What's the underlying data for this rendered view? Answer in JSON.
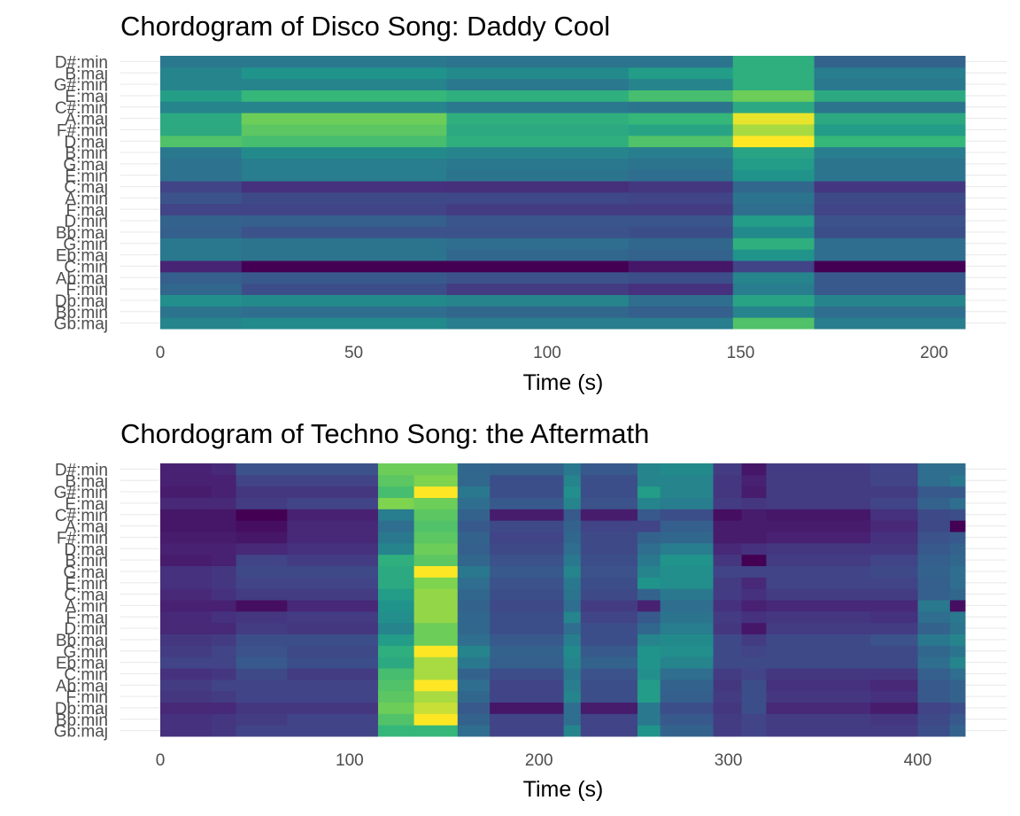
{
  "colors": {
    "background": "#ffffff",
    "grid": "#ebebeb",
    "tick_text": "#4d4d4d",
    "title_text": "#000000",
    "palette": "viridis"
  },
  "chart_data": [
    {
      "type": "heatmap",
      "title": "Chordogram of Disco Song: Daddy Cool",
      "xlabel": "Time (s)",
      "ylabel": "",
      "xlim": [
        0,
        208
      ],
      "xticks": [
        0,
        50,
        100,
        150,
        200
      ],
      "grid": true,
      "legend": "none",
      "y_categories": [
        "Gb:maj",
        "Bb:min",
        "Db:maj",
        "F:min",
        "Ab:maj",
        "C:min",
        "Eb:maj",
        "G:min",
        "Bb:maj",
        "D:min",
        "F:maj",
        "A:min",
        "C:maj",
        "E:min",
        "G:maj",
        "B:min",
        "D:maj",
        "F#:min",
        "A:maj",
        "C#:min",
        "E:maj",
        "G#:min",
        "B:maj",
        "D#:min"
      ],
      "segments": [
        {
          "start": 0,
          "end": 21,
          "values": [
            0.55,
            0.48,
            0.6,
            0.42,
            0.38,
            0.13,
            0.5,
            0.5,
            0.38,
            0.4,
            0.25,
            0.32,
            0.25,
            0.47,
            0.47,
            0.5,
            0.8,
            0.7,
            0.7,
            0.55,
            0.66,
            0.55,
            0.55,
            0.5
          ]
        },
        {
          "start": 21,
          "end": 74,
          "values": [
            0.58,
            0.45,
            0.58,
            0.3,
            0.35,
            0.0,
            0.48,
            0.48,
            0.32,
            0.38,
            0.25,
            0.28,
            0.18,
            0.52,
            0.52,
            0.58,
            0.78,
            0.82,
            0.85,
            0.55,
            0.75,
            0.55,
            0.62,
            0.5
          ]
        },
        {
          "start": 74,
          "end": 121,
          "values": [
            0.52,
            0.42,
            0.55,
            0.22,
            0.32,
            0.0,
            0.42,
            0.45,
            0.32,
            0.33,
            0.22,
            0.27,
            0.17,
            0.48,
            0.5,
            0.55,
            0.72,
            0.7,
            0.72,
            0.5,
            0.72,
            0.5,
            0.58,
            0.48
          ]
        },
        {
          "start": 121,
          "end": 148,
          "values": [
            0.52,
            0.38,
            0.45,
            0.18,
            0.3,
            0.08,
            0.4,
            0.42,
            0.3,
            0.33,
            0.22,
            0.25,
            0.2,
            0.45,
            0.48,
            0.52,
            0.8,
            0.68,
            0.75,
            0.48,
            0.78,
            0.55,
            0.65,
            0.48
          ]
        },
        {
          "start": 148,
          "end": 169,
          "values": [
            0.8,
            0.55,
            0.68,
            0.52,
            0.55,
            0.25,
            0.62,
            0.72,
            0.58,
            0.65,
            0.45,
            0.48,
            0.42,
            0.62,
            0.65,
            0.68,
            1.0,
            0.92,
            0.98,
            0.7,
            0.85,
            0.72,
            0.72,
            0.72
          ]
        },
        {
          "start": 169,
          "end": 208,
          "values": [
            0.52,
            0.45,
            0.55,
            0.35,
            0.35,
            0.0,
            0.45,
            0.45,
            0.3,
            0.32,
            0.25,
            0.28,
            0.2,
            0.48,
            0.48,
            0.52,
            0.75,
            0.65,
            0.7,
            0.48,
            0.7,
            0.5,
            0.52,
            0.4
          ]
        }
      ]
    },
    {
      "type": "heatmap",
      "title": "Chordogram of Techno Song: the Aftermath",
      "xlabel": "Time (s)",
      "ylabel": "",
      "xlim": [
        0,
        425
      ],
      "xticks": [
        0,
        100,
        200,
        300,
        400
      ],
      "grid": true,
      "legend": "none",
      "y_categories": [
        "Gb:maj",
        "Bb:min",
        "Db:maj",
        "F:min",
        "Ab:maj",
        "C:min",
        "Eb:maj",
        "G:min",
        "Bb:maj",
        "D:min",
        "F:maj",
        "A:min",
        "C:maj",
        "E:min",
        "G:maj",
        "B:min",
        "D:maj",
        "F#:min",
        "A:maj",
        "C#:min",
        "E:maj",
        "G#:min",
        "B:maj",
        "D#:min"
      ],
      "segments": [
        {
          "start": 0,
          "end": 27,
          "values": [
            0.18,
            0.18,
            0.15,
            0.2,
            0.22,
            0.18,
            0.25,
            0.22,
            0.2,
            0.15,
            0.15,
            0.12,
            0.15,
            0.18,
            0.18,
            0.1,
            0.12,
            0.1,
            0.08,
            0.08,
            0.15,
            0.1,
            0.12,
            0.12
          ]
        },
        {
          "start": 27,
          "end": 40,
          "values": [
            0.2,
            0.2,
            0.15,
            0.22,
            0.25,
            0.2,
            0.25,
            0.25,
            0.22,
            0.15,
            0.18,
            0.12,
            0.18,
            0.2,
            0.2,
            0.12,
            0.12,
            0.1,
            0.08,
            0.08,
            0.15,
            0.12,
            0.12,
            0.15
          ]
        },
        {
          "start": 40,
          "end": 67,
          "values": [
            0.25,
            0.22,
            0.2,
            0.25,
            0.25,
            0.28,
            0.35,
            0.32,
            0.3,
            0.22,
            0.2,
            0.05,
            0.22,
            0.25,
            0.28,
            0.25,
            0.15,
            0.08,
            0.05,
            0.0,
            0.22,
            0.2,
            0.25,
            0.32
          ]
        },
        {
          "start": 67,
          "end": 115,
          "values": [
            0.25,
            0.25,
            0.2,
            0.25,
            0.25,
            0.22,
            0.3,
            0.28,
            0.3,
            0.2,
            0.22,
            0.15,
            0.22,
            0.25,
            0.28,
            0.22,
            0.18,
            0.15,
            0.15,
            0.12,
            0.25,
            0.2,
            0.25,
            0.32
          ]
        },
        {
          "start": 115,
          "end": 134,
          "values": [
            0.75,
            0.8,
            0.85,
            0.82,
            0.8,
            0.78,
            0.7,
            0.72,
            0.65,
            0.55,
            0.6,
            0.62,
            0.65,
            0.7,
            0.7,
            0.72,
            0.55,
            0.5,
            0.45,
            0.52,
            0.88,
            0.78,
            0.82,
            0.85
          ]
        },
        {
          "start": 134,
          "end": 157,
          "values": [
            0.75,
            1.0,
            0.95,
            0.92,
            1.0,
            0.92,
            0.92,
            1.0,
            0.85,
            0.85,
            0.9,
            0.9,
            0.9,
            0.88,
            1.0,
            0.82,
            0.85,
            0.82,
            0.8,
            0.82,
            0.85,
            1.0,
            0.88,
            0.85
          ]
        },
        {
          "start": 157,
          "end": 174,
          "values": [
            0.45,
            0.4,
            0.35,
            0.42,
            0.45,
            0.4,
            0.5,
            0.55,
            0.45,
            0.42,
            0.42,
            0.4,
            0.42,
            0.45,
            0.5,
            0.42,
            0.38,
            0.4,
            0.35,
            0.4,
            0.45,
            0.5,
            0.42,
            0.42
          ]
        },
        {
          "start": 174,
          "end": 213,
          "values": [
            0.25,
            0.25,
            0.08,
            0.25,
            0.25,
            0.3,
            0.38,
            0.4,
            0.35,
            0.3,
            0.3,
            0.28,
            0.3,
            0.32,
            0.35,
            0.32,
            0.28,
            0.25,
            0.28,
            0.1,
            0.35,
            0.3,
            0.3,
            0.4
          ]
        },
        {
          "start": 213,
          "end": 222,
          "values": [
            0.55,
            0.45,
            0.45,
            0.55,
            0.52,
            0.5,
            0.55,
            0.58,
            0.52,
            0.45,
            0.55,
            0.45,
            0.48,
            0.5,
            0.55,
            0.5,
            0.45,
            0.42,
            0.4,
            0.35,
            0.55,
            0.6,
            0.55,
            0.5
          ]
        },
        {
          "start": 222,
          "end": 252,
          "values": [
            0.25,
            0.25,
            0.1,
            0.3,
            0.3,
            0.32,
            0.4,
            0.35,
            0.3,
            0.3,
            0.25,
            0.22,
            0.28,
            0.3,
            0.32,
            0.3,
            0.28,
            0.28,
            0.25,
            0.1,
            0.32,
            0.3,
            0.3,
            0.35
          ]
        },
        {
          "start": 252,
          "end": 264,
          "values": [
            0.62,
            0.5,
            0.5,
            0.65,
            0.65,
            0.6,
            0.62,
            0.62,
            0.55,
            0.42,
            0.35,
            0.12,
            0.4,
            0.62,
            0.55,
            0.5,
            0.45,
            0.4,
            0.25,
            0.35,
            0.55,
            0.65,
            0.55,
            0.55
          ]
        },
        {
          "start": 264,
          "end": 292,
          "values": [
            0.4,
            0.35,
            0.3,
            0.38,
            0.4,
            0.45,
            0.55,
            0.6,
            0.58,
            0.52,
            0.48,
            0.45,
            0.5,
            0.6,
            0.6,
            0.62,
            0.52,
            0.42,
            0.38,
            0.3,
            0.52,
            0.55,
            0.55,
            0.58
          ]
        },
        {
          "start": 292,
          "end": 307,
          "values": [
            0.22,
            0.22,
            0.2,
            0.22,
            0.2,
            0.22,
            0.28,
            0.28,
            0.28,
            0.2,
            0.22,
            0.18,
            0.22,
            0.22,
            0.25,
            0.2,
            0.15,
            0.1,
            0.1,
            0.05,
            0.22,
            0.2,
            0.2,
            0.22
          ]
        },
        {
          "start": 307,
          "end": 320,
          "values": [
            0.25,
            0.25,
            0.3,
            0.3,
            0.3,
            0.25,
            0.28,
            0.25,
            0.22,
            0.08,
            0.18,
            0.12,
            0.18,
            0.15,
            0.25,
            0.0,
            0.18,
            0.1,
            0.1,
            0.1,
            0.2,
            0.1,
            0.12,
            0.08
          ]
        },
        {
          "start": 320,
          "end": 375,
          "values": [
            0.22,
            0.22,
            0.15,
            0.2,
            0.18,
            0.2,
            0.28,
            0.28,
            0.28,
            0.22,
            0.2,
            0.15,
            0.22,
            0.25,
            0.25,
            0.22,
            0.2,
            0.12,
            0.1,
            0.08,
            0.22,
            0.22,
            0.22,
            0.22
          ]
        },
        {
          "start": 375,
          "end": 400,
          "values": [
            0.22,
            0.2,
            0.1,
            0.18,
            0.15,
            0.2,
            0.28,
            0.28,
            0.32,
            0.22,
            0.18,
            0.15,
            0.22,
            0.25,
            0.28,
            0.25,
            0.2,
            0.18,
            0.15,
            0.18,
            0.25,
            0.22,
            0.25,
            0.25
          ]
        },
        {
          "start": 400,
          "end": 417,
          "values": [
            0.3,
            0.28,
            0.25,
            0.35,
            0.35,
            0.38,
            0.45,
            0.42,
            0.5,
            0.4,
            0.45,
            0.5,
            0.38,
            0.38,
            0.4,
            0.38,
            0.35,
            0.32,
            0.28,
            0.28,
            0.4,
            0.35,
            0.45,
            0.45
          ]
        },
        {
          "start": 417,
          "end": 425,
          "values": [
            0.4,
            0.35,
            0.3,
            0.4,
            0.4,
            0.45,
            0.55,
            0.48,
            0.55,
            0.48,
            0.5,
            0.05,
            0.42,
            0.45,
            0.45,
            0.42,
            0.4,
            0.35,
            0.0,
            0.3,
            0.45,
            0.35,
            0.5,
            0.45
          ]
        }
      ]
    }
  ]
}
